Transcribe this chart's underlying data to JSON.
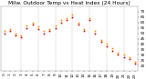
{
  "title": "Milw. Outdoor Temp vs Heat Index (24 Hours)",
  "background_color": "#ffffff",
  "grid_color": "#aaaaaa",
  "temp_color": "#cc0000",
  "heat_color": "#ff8800",
  "ylim": [
    15,
    75
  ],
  "yticks": [
    20,
    25,
    30,
    35,
    40,
    45,
    50,
    55,
    60,
    65,
    70
  ],
  "hours": [
    0,
    1,
    2,
    3,
    4,
    5,
    6,
    7,
    8,
    9,
    10,
    11,
    12,
    13,
    14,
    15,
    16,
    17,
    18,
    19,
    20,
    21,
    22,
    23
  ],
  "temp": [
    50,
    52,
    48,
    46,
    55,
    58,
    54,
    50,
    52,
    55,
    60,
    62,
    65,
    58,
    52,
    62,
    50,
    42,
    38,
    34,
    30,
    28,
    26,
    22
  ],
  "heat": [
    52,
    54,
    50,
    48,
    57,
    60,
    56,
    52,
    54,
    57,
    62,
    64,
    67,
    60,
    54,
    64,
    52,
    44,
    40,
    36,
    32,
    30,
    28,
    24
  ],
  "title_fontsize": 4.2,
  "tick_fontsize": 3.0,
  "marker_size": 1.2,
  "vgrid_hours": [
    3,
    6,
    9,
    12,
    15,
    18,
    21
  ]
}
